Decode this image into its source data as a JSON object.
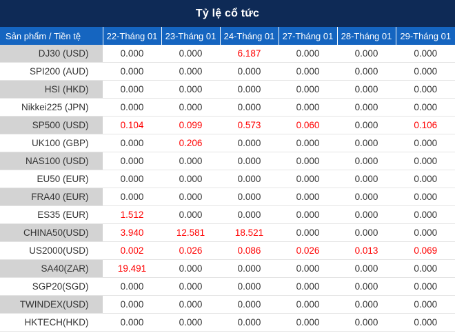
{
  "title": "Tỷ lệ cổ tức",
  "headers": [
    "Sản phẩm / Tiền tệ",
    "22-Tháng 01",
    "23-Tháng 01",
    "24-Tháng 01",
    "27-Tháng 01",
    "28-Tháng 01",
    "29-Tháng 01"
  ],
  "highlight_color": "#ff0000",
  "rows": [
    {
      "name": "DJ30 (USD)",
      "values": [
        "0.000",
        "0.000",
        "6.187",
        "0.000",
        "0.000",
        "0.000"
      ]
    },
    {
      "name": "SPI200 (AUD)",
      "values": [
        "0.000",
        "0.000",
        "0.000",
        "0.000",
        "0.000",
        "0.000"
      ]
    },
    {
      "name": "HSI (HKD)",
      "values": [
        "0.000",
        "0.000",
        "0.000",
        "0.000",
        "0.000",
        "0.000"
      ]
    },
    {
      "name": "Nikkei225 (JPN)",
      "values": [
        "0.000",
        "0.000",
        "0.000",
        "0.000",
        "0.000",
        "0.000"
      ]
    },
    {
      "name": "SP500 (USD)",
      "values": [
        "0.104",
        "0.099",
        "0.573",
        "0.060",
        "0.000",
        "0.106"
      ]
    },
    {
      "name": "UK100 (GBP)",
      "values": [
        "0.000",
        "0.206",
        "0.000",
        "0.000",
        "0.000",
        "0.000"
      ]
    },
    {
      "name": "NAS100 (USD)",
      "values": [
        "0.000",
        "0.000",
        "0.000",
        "0.000",
        "0.000",
        "0.000"
      ]
    },
    {
      "name": "EU50 (EUR)",
      "values": [
        "0.000",
        "0.000",
        "0.000",
        "0.000",
        "0.000",
        "0.000"
      ]
    },
    {
      "name": "FRA40 (EUR)",
      "values": [
        "0.000",
        "0.000",
        "0.000",
        "0.000",
        "0.000",
        "0.000"
      ]
    },
    {
      "name": "ES35 (EUR)",
      "values": [
        "1.512",
        "0.000",
        "0.000",
        "0.000",
        "0.000",
        "0.000"
      ]
    },
    {
      "name": "CHINA50(USD)",
      "values": [
        "3.940",
        "12.581",
        "18.521",
        "0.000",
        "0.000",
        "0.000"
      ]
    },
    {
      "name": "US2000(USD)",
      "values": [
        "0.002",
        "0.026",
        "0.086",
        "0.026",
        "0.013",
        "0.069"
      ]
    },
    {
      "name": "SA40(ZAR)",
      "values": [
        "19.491",
        "0.000",
        "0.000",
        "0.000",
        "0.000",
        "0.000"
      ]
    },
    {
      "name": "SGP20(SGD)",
      "values": [
        "0.000",
        "0.000",
        "0.000",
        "0.000",
        "0.000",
        "0.000"
      ]
    },
    {
      "name": "TWINDEX(USD)",
      "values": [
        "0.000",
        "0.000",
        "0.000",
        "0.000",
        "0.000",
        "0.000"
      ]
    },
    {
      "name": "HKTECH(HKD)",
      "values": [
        "0.000",
        "0.000",
        "0.000",
        "0.000",
        "0.000",
        "0.000"
      ]
    }
  ]
}
